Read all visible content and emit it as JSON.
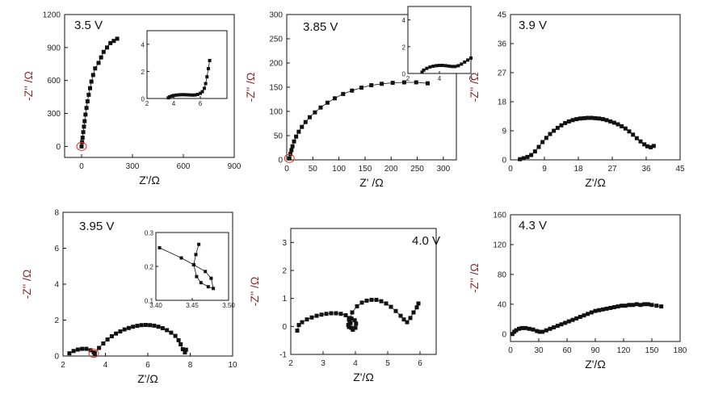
{
  "colors": {
    "axis": "#111111",
    "marker": "#111111",
    "ylabel": "#8b2a2a",
    "highlight": "#e03020"
  },
  "chart_data": [
    {
      "type": "scatter",
      "panel": "3.5 V",
      "label": "3.5 V",
      "xlabel": "Z'/Ω",
      "ylabel": "-Z'' /Ω",
      "xlim": [
        -100,
        900
      ],
      "ylim": [
        -100,
        1200
      ],
      "xticks": [
        "0",
        "300",
        "600",
        "900"
      ],
      "yticks": [
        "0",
        "300",
        "600",
        "900",
        "1200"
      ],
      "points": [
        [
          0,
          0
        ],
        [
          3,
          40
        ],
        [
          6,
          80
        ],
        [
          10,
          130
        ],
        [
          14,
          180
        ],
        [
          18,
          230
        ],
        [
          23,
          290
        ],
        [
          29,
          350
        ],
        [
          35,
          410
        ],
        [
          42,
          470
        ],
        [
          50,
          530
        ],
        [
          58,
          590
        ],
        [
          68,
          650
        ],
        [
          80,
          710
        ],
        [
          100,
          760
        ],
        [
          115,
          810
        ],
        [
          130,
          860
        ],
        [
          150,
          900
        ],
        [
          170,
          940
        ],
        [
          190,
          960
        ],
        [
          210,
          980
        ]
      ],
      "highlight": [
        0,
        0
      ],
      "inset": {
        "xlim": [
          2,
          8
        ],
        "ylim": [
          0,
          5
        ],
        "xticks": [
          "2",
          "4",
          "6"
        ],
        "yticks": [
          "0",
          "2",
          "4"
        ],
        "points": [
          [
            3.6,
            0.05
          ],
          [
            3.7,
            0.12
          ],
          [
            3.85,
            0.18
          ],
          [
            4.0,
            0.22
          ],
          [
            4.2,
            0.25
          ],
          [
            4.4,
            0.27
          ],
          [
            4.6,
            0.28
          ],
          [
            4.8,
            0.28
          ],
          [
            5.0,
            0.27
          ],
          [
            5.2,
            0.26
          ],
          [
            5.4,
            0.25
          ],
          [
            5.6,
            0.26
          ],
          [
            5.8,
            0.3
          ],
          [
            6.0,
            0.38
          ],
          [
            6.15,
            0.5
          ],
          [
            6.3,
            0.75
          ],
          [
            6.4,
            1.1
          ],
          [
            6.5,
            1.6
          ],
          [
            6.6,
            2.2
          ],
          [
            6.7,
            2.8
          ]
        ]
      }
    },
    {
      "type": "scatter",
      "panel": "3.85 V",
      "label": "3.85 V",
      "xlabel": "Z' /Ω",
      "ylabel": "-Z'' /Ω",
      "xlim": [
        0,
        325
      ],
      "ylim": [
        0,
        300
      ],
      "xticks": [
        "0",
        "50",
        "100",
        "150",
        "200",
        "250",
        "300"
      ],
      "yticks": [
        "0",
        "50",
        "100",
        "150",
        "200",
        "250",
        "300"
      ],
      "points": [
        [
          5,
          3
        ],
        [
          7,
          12
        ],
        [
          9,
          20
        ],
        [
          11,
          28
        ],
        [
          14,
          38
        ],
        [
          18,
          48
        ],
        [
          23,
          58
        ],
        [
          29,
          68
        ],
        [
          36,
          78
        ],
        [
          44,
          88
        ],
        [
          54,
          98
        ],
        [
          65,
          108
        ],
        [
          78,
          118
        ],
        [
          92,
          127
        ],
        [
          108,
          136
        ],
        [
          125,
          143
        ],
        [
          143,
          149
        ],
        [
          162,
          154
        ],
        [
          182,
          157
        ],
        [
          203,
          159
        ],
        [
          225,
          160
        ],
        [
          248,
          160
        ],
        [
          270,
          158
        ]
      ],
      "highlight": [
        5,
        3
      ],
      "inset": {
        "xlim": [
          2,
          6
        ],
        "ylim": [
          0,
          5
        ],
        "xticks": [
          "2",
          "4",
          "6"
        ],
        "yticks": [
          "0",
          "2",
          "4"
        ],
        "points": [
          [
            2.9,
            0.1
          ],
          [
            3.0,
            0.25
          ],
          [
            3.2,
            0.38
          ],
          [
            3.4,
            0.48
          ],
          [
            3.6,
            0.54
          ],
          [
            3.8,
            0.58
          ],
          [
            4.0,
            0.6
          ],
          [
            4.2,
            0.6
          ],
          [
            4.4,
            0.58
          ],
          [
            4.6,
            0.55
          ],
          [
            4.8,
            0.52
          ],
          [
            5.0,
            0.52
          ],
          [
            5.2,
            0.58
          ],
          [
            5.4,
            0.7
          ],
          [
            5.6,
            0.85
          ],
          [
            5.8,
            1.0
          ],
          [
            6.0,
            1.15
          ]
        ]
      }
    },
    {
      "type": "scatter",
      "panel": "3.9 V",
      "label": "3.9 V",
      "xlabel": "Z'/Ω",
      "ylabel": "-Z'' /Ω",
      "xlim": [
        0,
        45
      ],
      "ylim": [
        0,
        45
      ],
      "xticks": [
        "0",
        "9",
        "18",
        "27",
        "36",
        "45"
      ],
      "yticks": [
        "0",
        "9",
        "18",
        "27",
        "36",
        "45"
      ],
      "points": [
        [
          2.5,
          0.2
        ],
        [
          3.5,
          0.5
        ],
        [
          4.5,
          0.9
        ],
        [
          5.5,
          1.5
        ],
        [
          6.5,
          2.6
        ],
        [
          7.5,
          4.0
        ],
        [
          8.5,
          5.5
        ],
        [
          9.5,
          6.8
        ],
        [
          10.5,
          8.0
        ],
        [
          11.5,
          9.0
        ],
        [
          12.5,
          9.9
        ],
        [
          13.5,
          10.7
        ],
        [
          14.5,
          11.4
        ],
        [
          15.5,
          11.9
        ],
        [
          16.5,
          12.3
        ],
        [
          17.5,
          12.6
        ],
        [
          18.5,
          12.8
        ],
        [
          19.5,
          12.9
        ],
        [
          20.5,
          13.0
        ],
        [
          21.5,
          13.0
        ],
        [
          22.5,
          12.9
        ],
        [
          23.5,
          12.8
        ],
        [
          24.5,
          12.6
        ],
        [
          25.5,
          12.3
        ],
        [
          26.5,
          11.9
        ],
        [
          27.5,
          11.5
        ],
        [
          28.5,
          11.0
        ],
        [
          29.5,
          10.4
        ],
        [
          30.5,
          9.7
        ],
        [
          31.5,
          8.8
        ],
        [
          32.5,
          7.8
        ],
        [
          33.5,
          6.7
        ],
        [
          34.5,
          5.7
        ],
        [
          35.5,
          4.8
        ],
        [
          36.3,
          4.2
        ],
        [
          37.2,
          3.9
        ],
        [
          38.0,
          4.3
        ]
      ]
    },
    {
      "type": "scatter",
      "panel": "3.95 V",
      "label": "3.95 V",
      "xlabel": "Z'/Ω",
      "ylabel": "-Z'' /Ω",
      "xlim": [
        2,
        10
      ],
      "ylim": [
        0,
        8
      ],
      "xticks": [
        "2",
        "4",
        "6",
        "8",
        "10"
      ],
      "yticks": [
        "0",
        "2",
        "4",
        "6",
        "8"
      ],
      "points": [
        [
          2.3,
          0.15
        ],
        [
          2.5,
          0.28
        ],
        [
          2.7,
          0.36
        ],
        [
          2.9,
          0.4
        ],
        [
          3.1,
          0.4
        ],
        [
          3.3,
          0.32
        ],
        [
          3.45,
          0.2
        ],
        [
          3.5,
          0.12
        ],
        [
          3.7,
          0.45
        ],
        [
          3.9,
          0.7
        ],
        [
          4.1,
          0.92
        ],
        [
          4.3,
          1.1
        ],
        [
          4.5,
          1.25
        ],
        [
          4.7,
          1.37
        ],
        [
          4.9,
          1.48
        ],
        [
          5.1,
          1.56
        ],
        [
          5.3,
          1.63
        ],
        [
          5.5,
          1.68
        ],
        [
          5.7,
          1.72
        ],
        [
          5.9,
          1.73
        ],
        [
          6.1,
          1.72
        ],
        [
          6.3,
          1.69
        ],
        [
          6.5,
          1.63
        ],
        [
          6.7,
          1.55
        ],
        [
          6.9,
          1.44
        ],
        [
          7.1,
          1.3
        ],
        [
          7.3,
          1.12
        ],
        [
          7.45,
          0.88
        ],
        [
          7.55,
          0.65
        ],
        [
          7.65,
          0.38
        ],
        [
          7.75,
          0.2
        ],
        [
          7.8,
          0.35
        ]
      ],
      "highlight": [
        3.45,
        0.15
      ],
      "inset": {
        "xlim": [
          3.4,
          3.5
        ],
        "ylim": [
          0.1,
          0.3
        ],
        "xticks": [
          "3.40",
          "3.45",
          "3.50"
        ],
        "yticks": [
          "0.1",
          "0.2",
          "0.3"
        ],
        "points": [
          [
            3.405,
            0.255
          ],
          [
            3.435,
            0.225
          ],
          [
            3.452,
            0.205
          ],
          [
            3.468,
            0.185
          ],
          [
            3.476,
            0.165
          ],
          [
            3.479,
            0.135
          ],
          [
            3.472,
            0.14
          ],
          [
            3.462,
            0.152
          ],
          [
            3.456,
            0.17
          ],
          [
            3.452,
            0.205
          ],
          [
            3.455,
            0.235
          ],
          [
            3.459,
            0.265
          ]
        ]
      }
    },
    {
      "type": "scatter",
      "panel": "4.0 V",
      "label": "4.0 V",
      "xlabel": "Z'/Ω",
      "ylabel": "-Z'' /Ω",
      "xlim": [
        2,
        6.5
      ],
      "ylim": [
        -1,
        3.5
      ],
      "xticks": [
        "2",
        "3",
        "4",
        "5",
        "6"
      ],
      "yticks": [
        "-1",
        "0",
        "1",
        "2",
        "3"
      ],
      "points": [
        [
          2.2,
          -0.15
        ],
        [
          2.25,
          0.05
        ],
        [
          2.35,
          0.15
        ],
        [
          2.5,
          0.25
        ],
        [
          2.65,
          0.32
        ],
        [
          2.8,
          0.38
        ],
        [
          2.95,
          0.42
        ],
        [
          3.1,
          0.45
        ],
        [
          3.25,
          0.47
        ],
        [
          3.4,
          0.47
        ],
        [
          3.55,
          0.45
        ],
        [
          3.7,
          0.4
        ],
        [
          3.8,
          0.3
        ],
        [
          3.85,
          0.12
        ],
        [
          3.87,
          -0.05
        ],
        [
          3.92,
          -0.12
        ],
        [
          4.0,
          -0.05
        ],
        [
          4.02,
          0.1
        ],
        [
          3.98,
          0.22
        ],
        [
          3.88,
          0.28
        ],
        [
          3.8,
          0.25
        ],
        [
          3.78,
          0.05
        ],
        [
          3.8,
          -0.02
        ],
        [
          3.82,
          0.15
        ],
        [
          3.9,
          0.5
        ],
        [
          4.05,
          0.72
        ],
        [
          4.2,
          0.85
        ],
        [
          4.35,
          0.92
        ],
        [
          4.5,
          0.95
        ],
        [
          4.65,
          0.95
        ],
        [
          4.8,
          0.9
        ],
        [
          4.95,
          0.82
        ],
        [
          5.1,
          0.7
        ],
        [
          5.25,
          0.55
        ],
        [
          5.4,
          0.38
        ],
        [
          5.5,
          0.25
        ],
        [
          5.6,
          0.15
        ],
        [
          5.7,
          0.3
        ],
        [
          5.8,
          0.5
        ],
        [
          5.9,
          0.68
        ],
        [
          5.95,
          0.82
        ]
      ]
    },
    {
      "type": "scatter",
      "panel": "4.3 V",
      "label": "4.3 V",
      "xlabel": "Z'/Ω",
      "ylabel": "-Z'' /Ω",
      "xlim": [
        0,
        180
      ],
      "ylim": [
        -10,
        160
      ],
      "xticks": [
        "0",
        "30",
        "60",
        "90",
        "120",
        "150",
        "180"
      ],
      "yticks": [
        "0",
        "40",
        "80",
        "120",
        "160"
      ],
      "points": [
        [
          2,
          0
        ],
        [
          4,
          3
        ],
        [
          6,
          5
        ],
        [
          9,
          7
        ],
        [
          12,
          8
        ],
        [
          16,
          8
        ],
        [
          20,
          7
        ],
        [
          24,
          6
        ],
        [
          28,
          4
        ],
        [
          31,
          3
        ],
        [
          34,
          3
        ],
        [
          38,
          5
        ],
        [
          42,
          7
        ],
        [
          46,
          9
        ],
        [
          50,
          11
        ],
        [
          54,
          13
        ],
        [
          58,
          15
        ],
        [
          62,
          17
        ],
        [
          66,
          19
        ],
        [
          70,
          21
        ],
        [
          74,
          23
        ],
        [
          78,
          25
        ],
        [
          82,
          27
        ],
        [
          86,
          29
        ],
        [
          90,
          31
        ],
        [
          94,
          32
        ],
        [
          98,
          33
        ],
        [
          102,
          34
        ],
        [
          106,
          35
        ],
        [
          110,
          36
        ],
        [
          114,
          37
        ],
        [
          118,
          38
        ],
        [
          122,
          38
        ],
        [
          126,
          39
        ],
        [
          130,
          39
        ],
        [
          134,
          40
        ],
        [
          138,
          39
        ],
        [
          142,
          40
        ],
        [
          146,
          40
        ],
        [
          150,
          39
        ],
        [
          155,
          38
        ],
        [
          160,
          37
        ]
      ]
    }
  ]
}
